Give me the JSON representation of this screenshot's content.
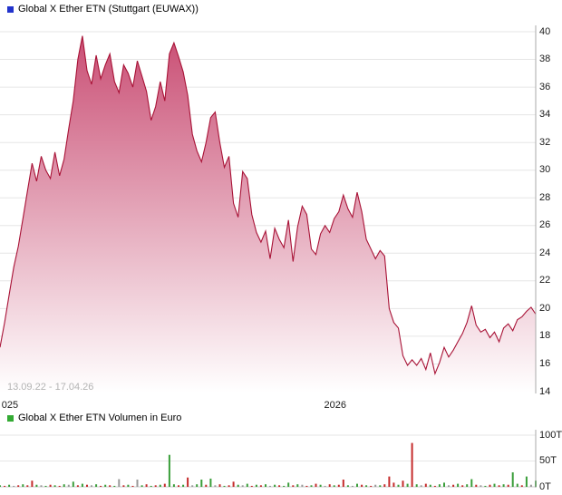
{
  "chart_data": [
    {
      "type": "area",
      "name": "price-series",
      "title": "Global X Ether ETN (Stuttgart (EUWAX))",
      "subtitle": "13.09.22 - 17.04.26",
      "legend_color": "#2233cc",
      "line_color": "#a81236",
      "fill_top": "#c94d73",
      "fill_bottom": "#ffffff",
      "grid": true,
      "legend_position": "top-left",
      "ylim": [
        14,
        40
      ],
      "yticks": [
        40,
        38,
        36,
        34,
        32,
        30,
        28,
        26,
        24,
        22,
        20,
        18,
        16,
        14
      ],
      "xticks": [
        {
          "label": "025",
          "pos": 0.003
        },
        {
          "label": "2026",
          "pos": 0.605
        }
      ],
      "values": [
        17.2,
        19.0,
        21.0,
        23.0,
        24.5,
        26.5,
        28.5,
        30.5,
        29.2,
        31.0,
        30.0,
        29.4,
        31.3,
        29.6,
        30.8,
        33.0,
        35.0,
        38.0,
        39.7,
        37.2,
        36.2,
        38.3,
        36.6,
        37.6,
        38.4,
        36.4,
        35.6,
        37.6,
        37.0,
        36.0,
        37.9,
        36.8,
        35.7,
        33.6,
        34.6,
        36.4,
        35.0,
        38.4,
        39.2,
        38.2,
        37.1,
        35.4,
        32.6,
        31.4,
        30.6,
        32.0,
        33.8,
        34.2,
        32.0,
        30.2,
        31.0,
        27.6,
        26.6,
        29.9,
        29.4,
        26.8,
        25.5,
        24.8,
        25.6,
        23.6,
        25.8,
        25.0,
        24.4,
        26.4,
        23.4,
        25.9,
        27.4,
        26.8,
        24.3,
        23.9,
        25.4,
        26.0,
        25.5,
        26.5,
        27.0,
        28.2,
        27.2,
        26.6,
        28.4,
        27.0,
        25.0,
        24.3,
        23.6,
        24.2,
        23.8,
        20.0,
        19.0,
        18.6,
        16.6,
        15.9,
        16.3,
        15.9,
        16.4,
        15.6,
        16.8,
        15.3,
        16.1,
        17.2,
        16.5,
        17.0,
        17.6,
        18.2,
        19.0,
        20.2,
        18.8,
        18.3,
        18.5,
        17.9,
        18.3,
        17.6,
        18.6,
        18.9,
        18.4,
        19.2,
        19.4,
        19.8,
        20.1,
        19.6
      ]
    },
    {
      "type": "bar",
      "name": "volume-series",
      "title": "Global X Ether ETN Volumen in Euro",
      "legend_color": "#33aa33",
      "unit_suffix": "T",
      "ylim": [
        0,
        100
      ],
      "yticks": [
        {
          "label": "100T",
          "value": 100
        },
        {
          "label": "50T",
          "value": 50
        },
        {
          "label": "0T",
          "value": 0
        }
      ],
      "color_map": {
        "g": "#3a9e3a",
        "r": "#c52b2b",
        "y": "#999999"
      },
      "values": [
        3,
        2,
        4,
        2,
        3,
        5,
        3,
        12,
        4,
        3,
        2,
        4,
        3,
        2,
        5,
        4,
        10,
        3,
        6,
        4,
        3,
        5,
        2,
        4,
        3,
        2,
        15,
        3,
        4,
        2,
        14,
        3,
        5,
        2,
        3,
        4,
        6,
        62,
        5,
        3,
        4,
        18,
        3,
        5,
        14,
        4,
        16,
        3,
        5,
        2,
        3,
        10,
        4,
        3,
        6,
        2,
        4,
        3,
        5,
        2,
        4,
        3,
        2,
        8,
        3,
        5,
        4,
        2,
        3,
        6,
        4,
        2,
        5,
        3,
        4,
        14,
        3,
        2,
        6,
        4,
        3,
        2,
        4,
        3,
        5,
        20,
        8,
        4,
        12,
        6,
        85,
        5,
        3,
        6,
        4,
        2,
        5,
        8,
        3,
        4,
        6,
        3,
        5,
        15,
        4,
        3,
        2,
        4,
        6,
        3,
        5,
        4,
        28,
        6,
        3,
        20,
        4,
        12
      ],
      "colors": [
        "g",
        "r",
        "g",
        "y",
        "r",
        "g",
        "r",
        "r",
        "g",
        "y",
        "g",
        "r",
        "g",
        "r",
        "g",
        "y",
        "g",
        "r",
        "g",
        "r",
        "y",
        "g",
        "r",
        "g",
        "r",
        "g",
        "y",
        "r",
        "g",
        "r",
        "y",
        "g",
        "r",
        "g",
        "r",
        "g",
        "r",
        "g",
        "g",
        "r",
        "g",
        "r",
        "y",
        "g",
        "g",
        "r",
        "g",
        "y",
        "r",
        "g",
        "r",
        "r",
        "g",
        "y",
        "g",
        "r",
        "g",
        "r",
        "g",
        "y",
        "g",
        "r",
        "g",
        "g",
        "r",
        "g",
        "y",
        "r",
        "g",
        "r",
        "g",
        "y",
        "r",
        "g",
        "r",
        "r",
        "g",
        "y",
        "g",
        "r",
        "g",
        "r",
        "y",
        "g",
        "r",
        "r",
        "r",
        "g",
        "r",
        "g",
        "r",
        "g",
        "y",
        "r",
        "g",
        "r",
        "g",
        "g",
        "y",
        "r",
        "g",
        "r",
        "g",
        "g",
        "r",
        "y",
        "g",
        "r",
        "g",
        "r",
        "g",
        "r",
        "g",
        "g",
        "r",
        "g",
        "y",
        "g"
      ]
    }
  ]
}
